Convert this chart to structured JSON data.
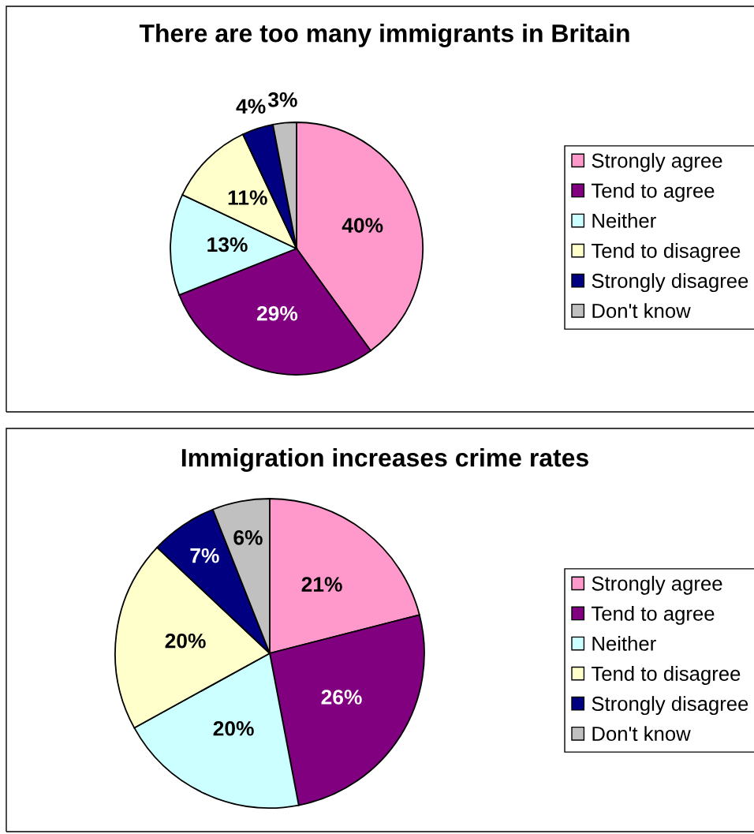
{
  "chart_data": [
    {
      "type": "pie",
      "title": "There are too many immigrants in Britain",
      "categories": [
        "Strongly agree",
        "Tend to agree",
        "Neither",
        "Tend to disagree",
        "Strongly disagree",
        "Don't know"
      ],
      "values": [
        40,
        29,
        13,
        11,
        4,
        3
      ],
      "colors": [
        "#ff99cc",
        "#800080",
        "#ccffff",
        "#ffffcc",
        "#000080",
        "#c0c0c0"
      ],
      "value_labels": [
        "40%",
        "29%",
        "13%",
        "11%",
        "4%",
        "3%"
      ],
      "legend": "right"
    },
    {
      "type": "pie",
      "title": "Immigration increases crime rates",
      "categories": [
        "Strongly agree",
        "Tend to agree",
        "Neither",
        "Tend to disagree",
        "Strongly disagree",
        "Don't know"
      ],
      "values": [
        21,
        26,
        20,
        20,
        7,
        6
      ],
      "colors": [
        "#ff99cc",
        "#800080",
        "#ccffff",
        "#ffffcc",
        "#000080",
        "#c0c0c0"
      ],
      "value_labels": [
        "21%",
        "26%",
        "20%",
        "20%",
        "7%",
        "6%"
      ],
      "legend": "right"
    }
  ]
}
